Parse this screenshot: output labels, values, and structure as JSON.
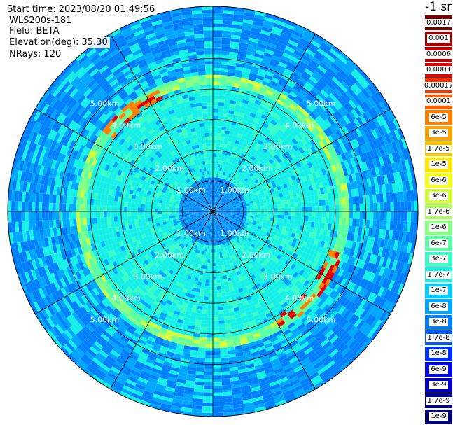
{
  "header": {
    "start_time": "Start time: 2023/08/20 01:49:56",
    "instrument": "WLS200s-181",
    "field": "Field: BETA",
    "elevation": "Elevation(deg): 35.30",
    "nrays": "NRays: 120"
  },
  "colorbar": {
    "unit_label": "-1 sr",
    "ticks": [
      "0.0017",
      "0.001",
      "0.0006",
      "0.0003",
      "0.00017",
      "0.0001",
      "6e-5",
      "3e-5",
      "1.7e-5",
      "1e-5",
      "6e-6",
      "3e-6",
      "1.7e-6",
      "1e-6",
      "6e-7",
      "3e-7",
      "1.7e-7",
      "1e-7",
      "6e-8",
      "3e-8",
      "1.7e-8",
      "1e-8",
      "6e-9",
      "3e-9",
      "1.7e-9",
      "1e-9"
    ],
    "colors": [
      "#7a0000",
      "#9c0000",
      "#c40000",
      "#e80000",
      "#ff3000",
      "#ff5a00",
      "#ff8000",
      "#ffa200",
      "#ffc400",
      "#ffe600",
      "#f4ff14",
      "#d2ff3a",
      "#aaff5e",
      "#88ff80",
      "#5affa4",
      "#38ffc6",
      "#14f0e8",
      "#00ccff",
      "#00a6ff",
      "#0080ff",
      "#0058ff",
      "#0030ff",
      "#0008f0",
      "#0000c8",
      "#00009c",
      "#000074"
    ]
  },
  "chart_data": {
    "type": "polar-ppi",
    "field": "BETA",
    "elevation_deg": 35.3,
    "nrays": 120,
    "range_rings_km": [
      1,
      2,
      3,
      4,
      5
    ],
    "range_labels": [
      "1.00km",
      "2.00km",
      "3.00km",
      "4.00km",
      "5.00km"
    ],
    "max_range_km": 6.7,
    "spoke_angles_deg": [
      0,
      30,
      60,
      90,
      120,
      150,
      180,
      210,
      240,
      270,
      300,
      330
    ],
    "colorscale": "log10",
    "colorscale_range": [
      1e-09,
      0.0017
    ]
  }
}
